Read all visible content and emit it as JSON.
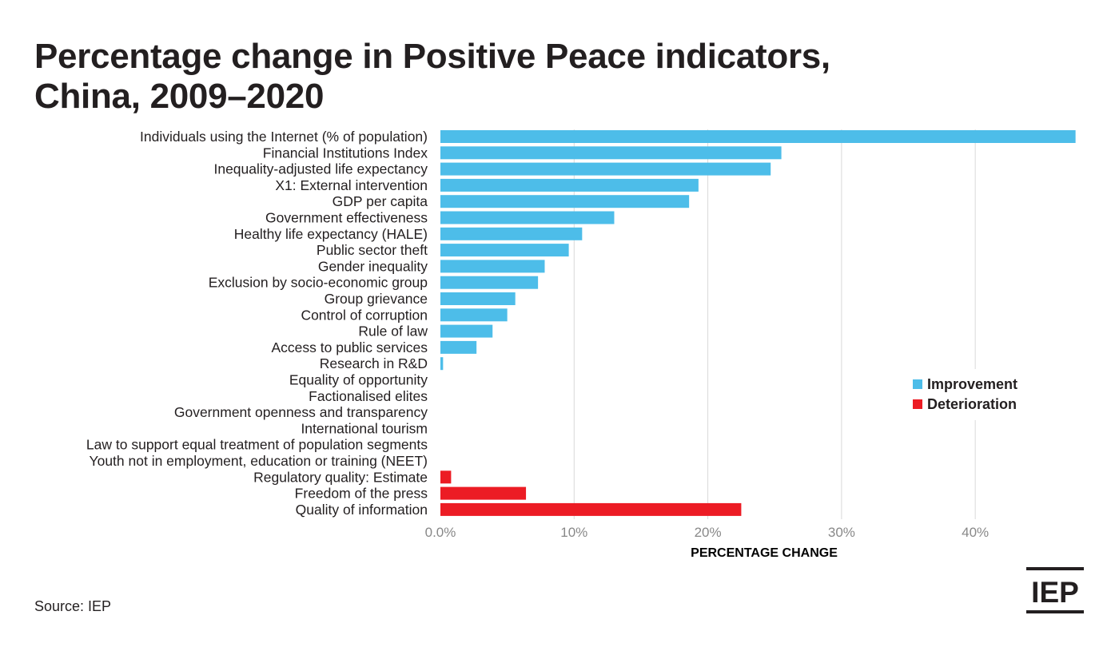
{
  "title_lines": [
    "Percentage change in Positive Peace indicators,",
    "China, 2009–2020"
  ],
  "source": "Source: IEP",
  "logo_text": "IEP",
  "colors": {
    "improvement": "#4dbde9",
    "deterioration": "#ec1c24",
    "grid": "#d9d9d9",
    "text": "#231f20",
    "tick": "#888888"
  },
  "chart_data": {
    "type": "bar",
    "orientation": "horizontal",
    "xlabel": "PERCENTAGE CHANGE",
    "xlim": [
      0,
      48
    ],
    "xticks": [
      0,
      10,
      20,
      30,
      40
    ],
    "xtick_labels": [
      "0.0%",
      "10%",
      "20%",
      "30%",
      "40%"
    ],
    "grid": true,
    "legend_position": "right",
    "legend": [
      {
        "name": "Improvement",
        "color_key": "improvement"
      },
      {
        "name": "Deterioration",
        "color_key": "deterioration"
      }
    ],
    "categories": [
      "Individuals using the Internet (% of population)",
      "Financial Institutions Index",
      "Inequality-adjusted life expectancy",
      "X1: External intervention",
      "GDP per capita",
      "Government effectiveness",
      "Healthy life expectancy (HALE)",
      "Public sector theft",
      "Gender inequality",
      "Exclusion by socio-economic group",
      "Group grievance",
      "Control of corruption",
      "Rule of law",
      "Access to public services",
      "Research in R&D",
      "Equality of opportunity",
      "Factionalised elites",
      "Government openness and transparency",
      "International tourism",
      "Law to support equal treatment of population segments",
      "Youth not in employment, education or training (NEET)",
      "Regulatory quality: Estimate",
      "Freedom of the press",
      "Quality of information"
    ],
    "values": [
      47.5,
      25.5,
      24.7,
      19.3,
      18.6,
      13.0,
      10.6,
      9.6,
      7.8,
      7.3,
      5.6,
      5.0,
      3.9,
      2.7,
      0.2,
      0,
      0,
      0,
      0,
      0,
      0,
      0.8,
      6.4,
      22.5
    ],
    "series_type": [
      "improvement",
      "improvement",
      "improvement",
      "improvement",
      "improvement",
      "improvement",
      "improvement",
      "improvement",
      "improvement",
      "improvement",
      "improvement",
      "improvement",
      "improvement",
      "improvement",
      "improvement",
      "improvement",
      "improvement",
      "improvement",
      "improvement",
      "improvement",
      "improvement",
      "deterioration",
      "deterioration",
      "deterioration"
    ]
  }
}
